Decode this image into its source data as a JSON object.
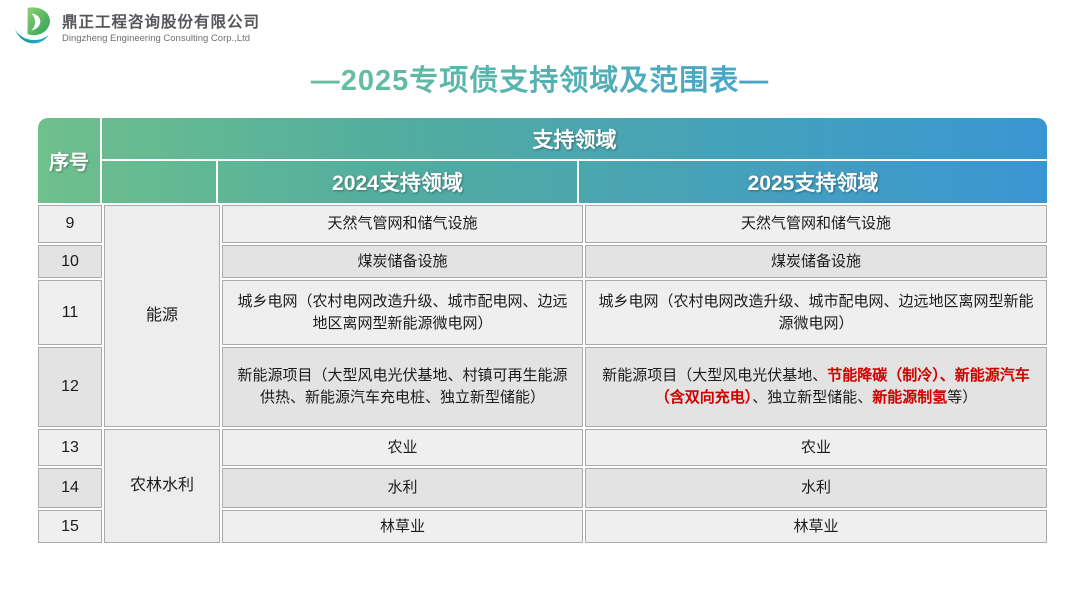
{
  "brand": {
    "name_cn": "鼎正工程咨询股份有限公司",
    "name_en": "Dingzheng Engineering Consulting Corp.,Ltd"
  },
  "title": "—2025专项债支持领域及范围表—",
  "colors": {
    "title_green": "#74c795",
    "title_blue": "#3e9ad7",
    "header_green": "#6fc08c",
    "header_blue": "#3a96d3",
    "highlight_red": "#d10000",
    "row_light": "#efefef",
    "row_dark": "#e3e3e3"
  },
  "table": {
    "headers": {
      "no": "序号",
      "group": "支持领域",
      "col2024": "2024支持领域",
      "col2025": "2025支持领域"
    },
    "groups": [
      {
        "label": "能源"
      },
      {
        "label": "农林水利"
      }
    ],
    "rows": [
      {
        "no": "9",
        "y2024": [
          {
            "text": "天然气管网和储气设施"
          }
        ],
        "y2025": [
          {
            "text": "天然气管网和储气设施"
          }
        ]
      },
      {
        "no": "10",
        "y2024": [
          {
            "text": "煤炭储备设施"
          }
        ],
        "y2025": [
          {
            "text": "煤炭储备设施"
          }
        ]
      },
      {
        "no": "11",
        "y2024": [
          {
            "text": "城乡电网（农村电网改造升级、城市配电网、边远地区离网型新能源微电网）"
          }
        ],
        "y2025": [
          {
            "text": "城乡电网（农村电网改造升级、城市配电网、边远地区离网型新能源微电网）"
          }
        ]
      },
      {
        "no": "12",
        "y2024": [
          {
            "text": "新能源项目（大型风电光伏基地、村镇可再生能源供热、新能源汽车充电桩、独立新型储能）"
          }
        ],
        "y2025": [
          {
            "text": "新能源项目（大型风电光伏基地、"
          },
          {
            "text": "节能降碳（制冷）、",
            "red": true
          },
          {
            "text": "新能源汽车（含双向充电）",
            "red": true
          },
          {
            "text": "、独立新型储能、"
          },
          {
            "text": "新能源制氢",
            "red": true
          },
          {
            "text": "等）"
          }
        ]
      },
      {
        "no": "13",
        "y2024": [
          {
            "text": "农业"
          }
        ],
        "y2025": [
          {
            "text": "农业"
          }
        ]
      },
      {
        "no": "14",
        "y2024": [
          {
            "text": "水利"
          }
        ],
        "y2025": [
          {
            "text": "水利"
          }
        ]
      },
      {
        "no": "15",
        "y2024": [
          {
            "text": "林草业"
          }
        ],
        "y2025": [
          {
            "text": "林草业"
          }
        ]
      }
    ]
  }
}
